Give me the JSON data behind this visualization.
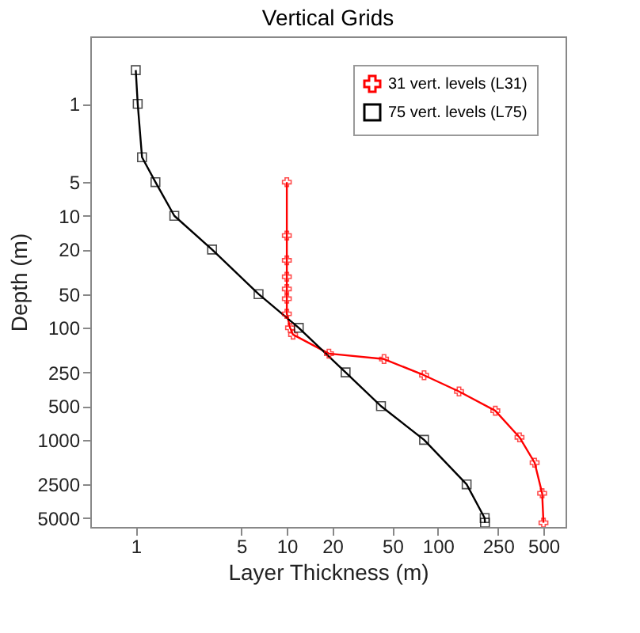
{
  "chart_data": {
    "type": "line",
    "title": "Vertical Grids",
    "xlabel": "Layer Thickness (m)",
    "ylabel": "Depth (m)",
    "log": "xy",
    "xlim": [
      0.5,
      700
    ],
    "ylim": [
      6000,
      0.25
    ],
    "xticks": [
      1,
      5,
      10,
      20,
      50,
      100,
      250,
      500
    ],
    "yticks": [
      1,
      5,
      10,
      20,
      50,
      100,
      250,
      500,
      1000,
      2500,
      5000
    ],
    "grid": false,
    "legend": "top right",
    "series": [
      {
        "name": "31 vert. levels (L31)",
        "color": "#ff0000",
        "marker": "cross",
        "x": [
          10,
          10,
          10,
          10,
          10,
          10,
          10,
          10.5,
          11,
          19,
          44,
          81,
          138,
          240,
          347,
          437,
          490,
          500
        ],
        "values": [
          5,
          15,
          25,
          35,
          45,
          55,
          75,
          100,
          115,
          170,
          190,
          265,
          370,
          550,
          950,
          1600,
          3000,
          5500
        ]
      },
      {
        "name": "75 vert. levels (L75)",
        "color": "#000000",
        "marker": "square",
        "x": [
          1,
          1.03,
          1.1,
          1.35,
          1.8,
          3.2,
          6.5,
          12,
          24.5,
          42,
          81,
          155,
          204,
          205
        ],
        "values": [
          0.5,
          1,
          3,
          5,
          10,
          20,
          50,
          100,
          250,
          500,
          1000,
          2500,
          5000,
          5500
        ]
      }
    ]
  }
}
